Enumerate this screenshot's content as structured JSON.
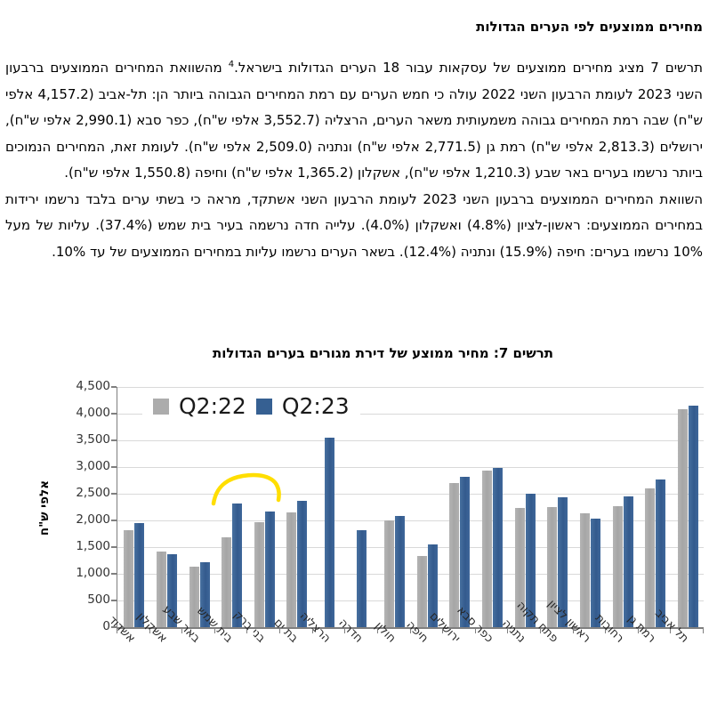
{
  "document": {
    "heading": "מחירים ממוצעים לפי הערים הגדולות",
    "para1_a": "תרשים 7 מציג מחירים ממוצעים של עסקאות עבור 18 הערים הגדולות בישראל.",
    "footnote_marker": "4",
    "para1_b": " מהשוואת המחירים הממוצעים ברבעון השני 2023 לעומת הרבעון השני 2022 עולה כי חמש הערים עם רמת המחירים הגבוהה ביותר הן: תל-אביב (4,157.2 אלפי ש\"ח) שבה רמת המחירים גבוהה משמעותית משאר הערים, הרצליה (3,552.7 אלפי ש\"ח), כפר סבא (2,990.1 אלפי ש\"ח), ירושלים (2,813.3 אלפי ש\"ח) רמת גן (2,771.5 אלפי ש\"ח) ונתניה (2,509.0 אלפי ש\"ח). לעומת זאת, המחירים הנמוכים ביותר נרשמו בערים באר שבע (1,210.3 אלפי ש\"ח), אשקלון (1,365.2 אלפי ש\"ח) וחיפה (1,550.8 אלפי ש\"ח).",
    "para2": "השוואת המחירים הממוצעים ברבעון השני 2023 לעומת הרבעון השני אשתקד, מראה כי בשתי ערים בלבד נרשמו ירידות במחירים הממוצעים: ראשון-לציון (4.8%) ואשקלון (4.0%). עלייה חדה נרשמה בעיר בית שמש (37.4%). עליות של מעל 10% נרשמו בערים: חיפה (15.9%) ונתניה (12.4%). בשאר הערים נרשמו עליות במחירים הממוצעים של עד 10%."
  },
  "chart_data": {
    "type": "bar",
    "title": "תרשים 7: מחיר ממוצע של דירת מגורים בערים הגדולות",
    "xlabel": "",
    "ylabel": "אלפי ש\"ח",
    "ylim": [
      0,
      4500
    ],
    "ytick_step": 500,
    "ytick_labels": [
      "0",
      "500",
      "1,000",
      "1,500",
      "2,000",
      "2,500",
      "3,000",
      "3,500",
      "4,000",
      "4,500"
    ],
    "grid": true,
    "legend_position": "top-left",
    "categories": [
      "אשדוד",
      "אשקלון",
      "באר שבע",
      "בית שמש",
      "בני ברק",
      "בת ים",
      "הרצליה",
      "חדרה",
      "חולון",
      "חיפה",
      "ירושלים",
      "כפר סבא",
      "נתניה",
      "פתח תקוה",
      "ראשון לציון",
      "רחובות",
      "רמת גן",
      "תל אביב"
    ],
    "series": [
      {
        "name": "Q2:22",
        "color": "#ACACAC",
        "values": [
          1820,
          1422,
          1140,
          1680,
          1970,
          2155,
          null,
          null,
          2000,
          1338,
          2700,
          2930,
          2232,
          2250,
          2140,
          2270,
          2600,
          4090
        ]
      },
      {
        "name": "Q2:23",
        "color": "#3A6296",
        "values": [
          1950,
          1365,
          1210,
          2310,
          2170,
          2370,
          3553,
          1820,
          2090,
          1551,
          2813,
          2990,
          2509,
          2430,
          2037,
          2450,
          2772,
          4157
        ]
      }
    ],
    "annotation": {
      "type": "hand-drawn-arc",
      "color": "#FFDE00",
      "over_categories": [
        "בית שמש",
        "בני ברק"
      ]
    },
    "colors": {
      "gridline": "#D9D9D9",
      "axis": "#7F7F7F"
    }
  }
}
